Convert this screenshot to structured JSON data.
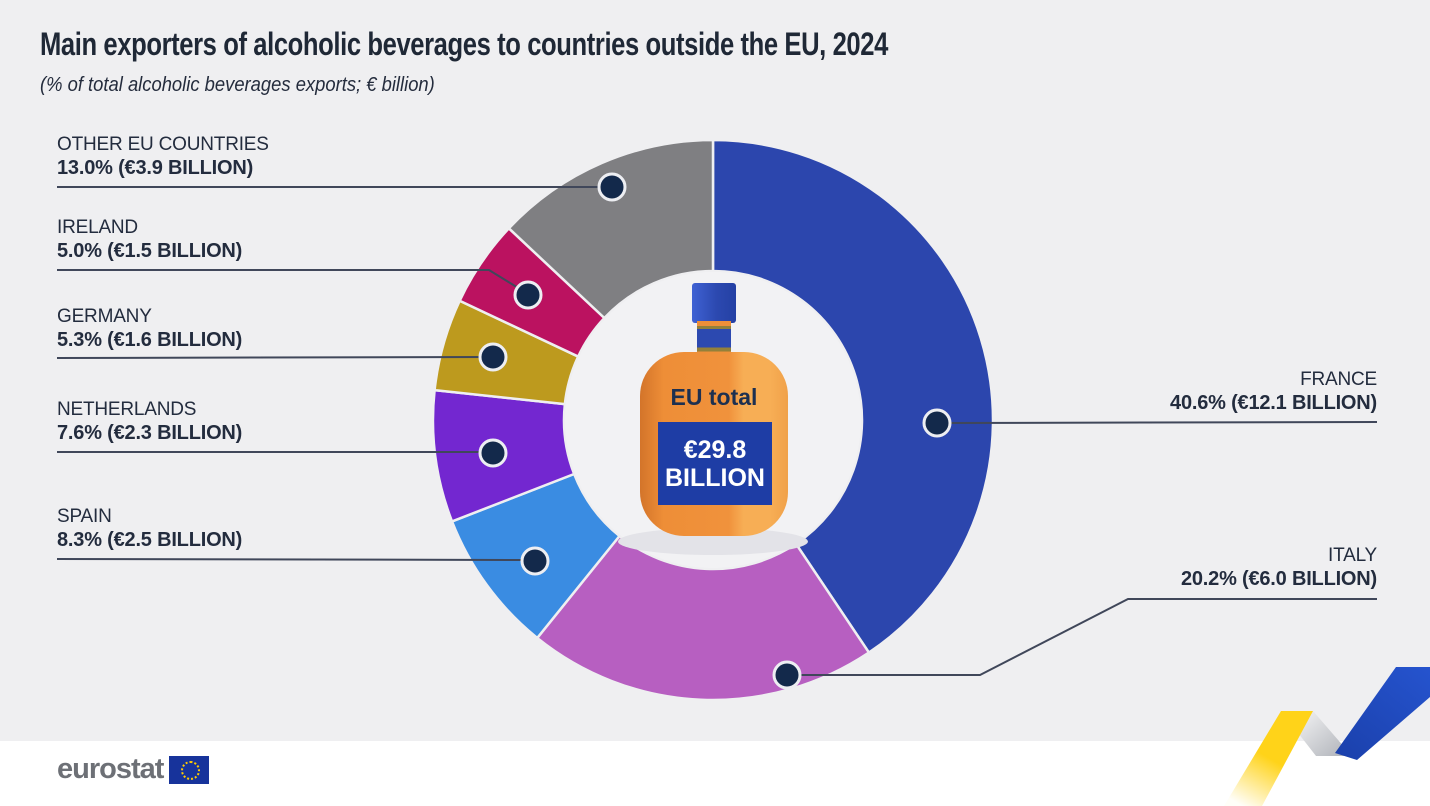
{
  "header": {
    "title": "Main exporters of alcoholic beverages to countries outside the EU, 2024",
    "subtitle": "(% of total alcoholic beverages exports; € billion)"
  },
  "chart_data": {
    "type": "pie",
    "subtype": "donut",
    "title": "Main exporters of alcoholic beverages to countries outside the EU, 2024",
    "unit": "% of total alcoholic beverages exports; € billion",
    "start_angle_deg": 0,
    "direction": "clockwise",
    "center_total": {
      "label": "EU total",
      "value_line1": "€29.8",
      "value_line2": "BILLION",
      "value": "€29.8 BILLION",
      "value_billion_eur": 29.8
    },
    "segments": [
      {
        "label": "FRANCE",
        "percent": 40.6,
        "value_billion_eur": 12.1,
        "value_label": "40.6% (€12.1 BILLION)",
        "color": "#2c46ad",
        "side": "right"
      },
      {
        "label": "ITALY",
        "percent": 20.2,
        "value_billion_eur": 6.0,
        "value_label": "20.2% (€6.0 BILLION)",
        "color": "#b75fc1",
        "side": "right"
      },
      {
        "label": "SPAIN",
        "percent": 8.3,
        "value_billion_eur": 2.5,
        "value_label": "8.3% (€2.5 BILLION)",
        "color": "#3a8ce2",
        "side": "left"
      },
      {
        "label": "NETHERLANDS",
        "percent": 7.6,
        "value_billion_eur": 2.3,
        "value_label": "7.6% (€2.3 BILLION)",
        "color": "#7327d0",
        "side": "left"
      },
      {
        "label": "GERMANY",
        "percent": 5.3,
        "value_billion_eur": 1.6,
        "value_label": "5.3% (€1.6 BILLION)",
        "color": "#bd9a1e",
        "side": "left"
      },
      {
        "label": "IRELAND",
        "percent": 5.0,
        "value_billion_eur": 1.5,
        "value_label": "5.0% (€1.5 BILLION)",
        "color": "#bb1260",
        "side": "left"
      },
      {
        "label": "OTHER EU COUNTRIES",
        "percent": 13.0,
        "value_billion_eur": 3.9,
        "value_label": "13.0% (€3.9 BILLION)",
        "color": "#7f7f82",
        "side": "left"
      }
    ],
    "colors": {
      "leader_line": "#40475a",
      "marker_dot": "#13294b",
      "marker_ring": "#edeef2",
      "background": "#efeff1",
      "hole": "#f2f2f4"
    }
  },
  "footer": {
    "brand": "eurostat"
  },
  "decor": {
    "ribbon_yellow": "#ffd319",
    "ribbon_blue": "#2150c8",
    "ribbon_gray": "#b4b7bd"
  }
}
